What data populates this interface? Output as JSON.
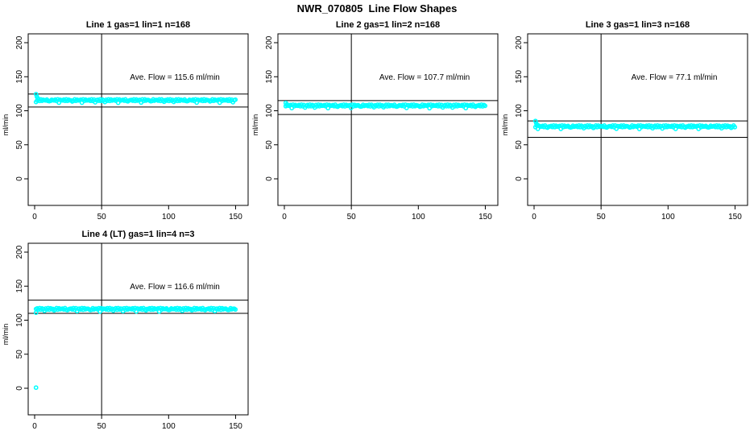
{
  "page_title": "NWR_070805  Line Flow Shapes",
  "colors": {
    "points": "#00FFFF",
    "axis": "#000000",
    "background": "#FFFFFF"
  },
  "axes": {
    "ylabel": "ml/min",
    "yticks": [
      200,
      150,
      100,
      50,
      0
    ],
    "xticks": [
      0,
      50,
      100,
      150
    ],
    "ylim": [
      -39,
      213
    ],
    "xlim": [
      -5,
      155
    ],
    "grid": false
  },
  "chart_data": [
    {
      "type": "scatter",
      "title": "Line 1 gas=1 lin=1 n=168",
      "annotation": "Ave. Flow =  115.6  ml/min",
      "ave_flow": 115.6,
      "n": 168,
      "gas": 1,
      "lin": 1,
      "vline_x": 50,
      "ref_lines": {
        "upper": 124.5,
        "lower": 105.5
      },
      "band": {
        "x_start": 1,
        "x_end": 150,
        "mean": 115.6
      },
      "start_points": [
        [
          1,
          124.5
        ],
        [
          1.6,
          121
        ],
        [
          2.2,
          118.5
        ],
        [
          3,
          117
        ]
      ],
      "outliers": []
    },
    {
      "type": "scatter",
      "title": "Line 2 gas=1 lin=2 n=168",
      "annotation": "Ave. Flow =  107.7  ml/min",
      "ave_flow": 107.7,
      "n": 168,
      "gas": 1,
      "lin": 2,
      "vline_x": 50,
      "ref_lines": {
        "upper": 115,
        "lower": 94.5
      },
      "band": {
        "x_start": 1,
        "x_end": 150,
        "mean": 107.7
      },
      "start_points": [
        [
          1,
          111.5
        ],
        [
          2,
          109.5
        ]
      ],
      "outliers": []
    },
    {
      "type": "scatter",
      "title": "Line 3 gas=1 lin=3 n=168",
      "annotation": "Ave. Flow =  77.1  ml/min",
      "ave_flow": 77.1,
      "n": 168,
      "gas": 1,
      "lin": 3,
      "vline_x": 50,
      "ref_lines": {
        "upper": 85,
        "lower": 61
      },
      "band": {
        "x_start": 1,
        "x_end": 150,
        "mean": 77.1
      },
      "start_points": [
        [
          1,
          85
        ],
        [
          1.6,
          81.5
        ],
        [
          2.2,
          79.5
        ],
        [
          3,
          78.5
        ]
      ],
      "outliers": []
    },
    {
      "type": "scatter",
      "title": "Line 4 (LT) gas=1 lin=4 n=3",
      "annotation": "Ave. Flow =  116.6  ml/min",
      "ave_flow": 116.6,
      "n": 3,
      "gas": 1,
      "lin": 4,
      "vline_x": 50,
      "ref_lines": {
        "upper": 129.5,
        "lower": 110
      },
      "band": {
        "x_start": 1,
        "x_end": 150,
        "mean": 116.6
      },
      "start_points": [
        [
          1,
          111
        ]
      ],
      "outliers": [
        [
          1,
          1
        ]
      ]
    }
  ]
}
